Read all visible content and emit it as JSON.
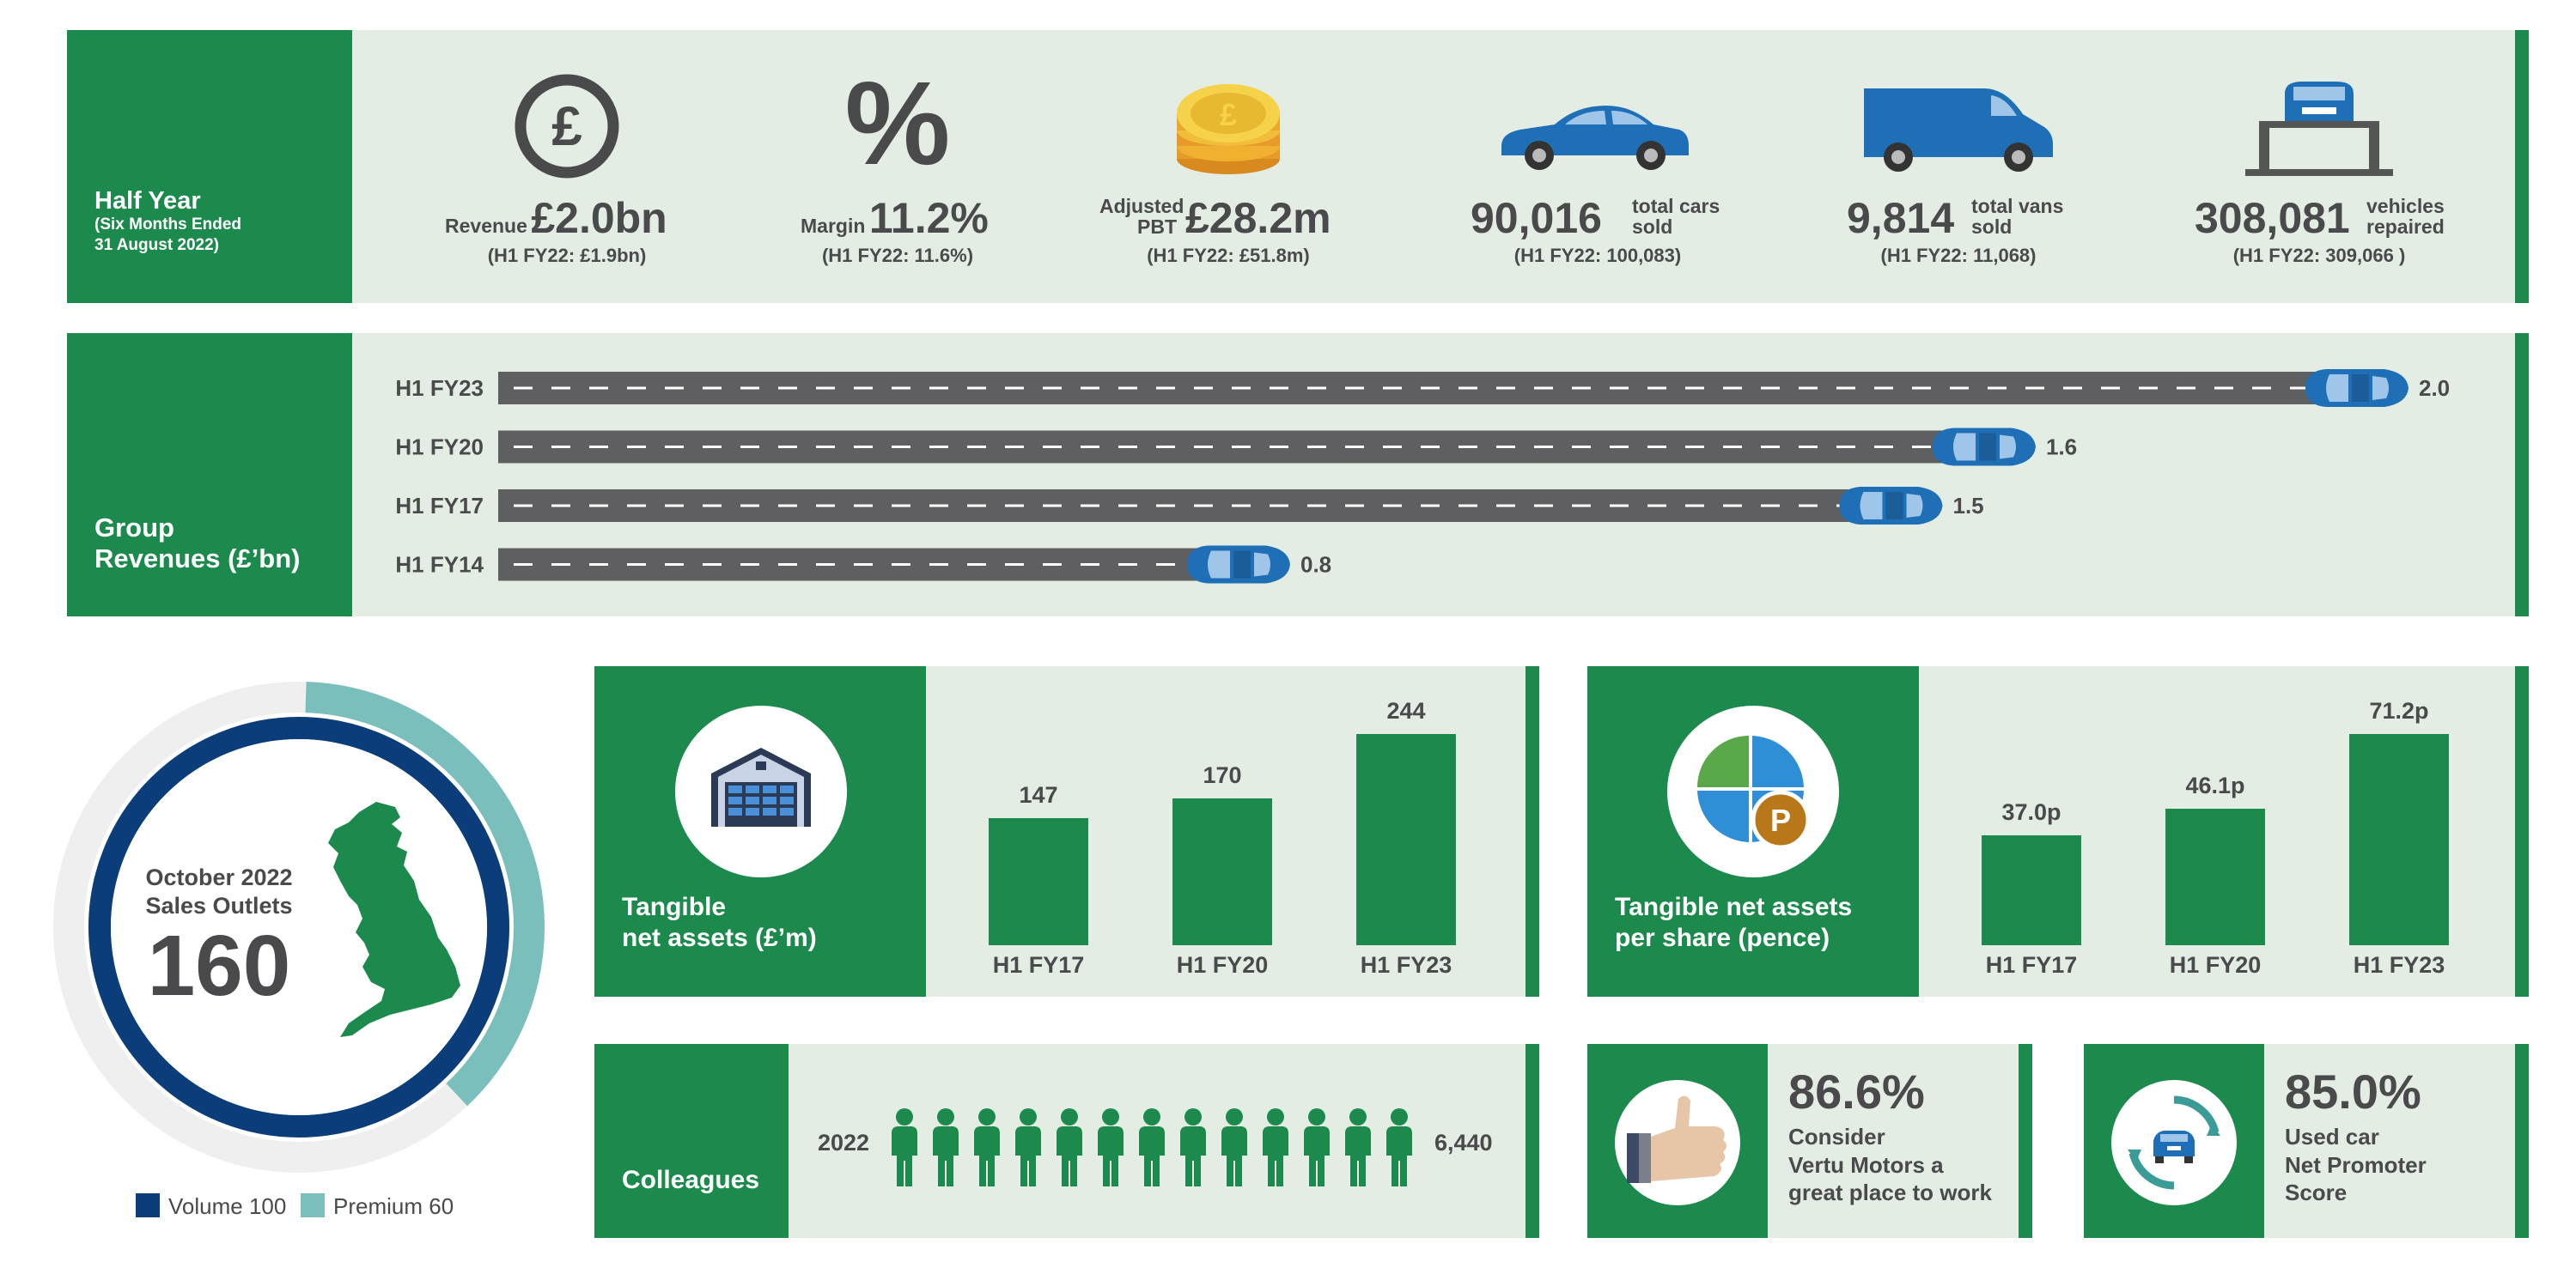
{
  "half_year": {
    "title": "Half Year",
    "subtitle_line1": "(Six Months Ended",
    "subtitle_line2": "31 August 2022)"
  },
  "stats": [
    {
      "icon": "pound-icon",
      "prefix": "Revenue",
      "value": "£2.0bn",
      "suffix": "",
      "note": "(H1 FY22: £1.9bn)"
    },
    {
      "icon": "percent-icon",
      "prefix": "Margin",
      "value": "11.2%",
      "suffix": "",
      "note": "(H1 FY22: 11.6%)"
    },
    {
      "icon": "coins-icon",
      "prefix_line1": "Adjusted",
      "prefix_line2": "PBT",
      "value": "£28.2m",
      "note": "(H1 FY22: £51.8m)"
    },
    {
      "icon": "car-icon",
      "value": "90,016",
      "suffix_line1": "total cars",
      "suffix_line2": "sold",
      "note": "(H1 FY22: 100,083)"
    },
    {
      "icon": "van-icon",
      "value": "9,814",
      "suffix_line1": "total vans",
      "suffix_line2": "sold",
      "note": "(H1 FY22: 11,068)"
    },
    {
      "icon": "car-lift-icon",
      "value": "308,081",
      "suffix_line1": "vehicles",
      "suffix_line2": "repaired",
      "note": "(H1 FY22: 309,066 )"
    }
  ],
  "group_revenues": {
    "label_line1": "Group",
    "label_line2": "Revenues (£’bn)",
    "rows": [
      {
        "label": "H1 FY23",
        "value": 2.0,
        "value_text": "2.0"
      },
      {
        "label": "H1 FY20",
        "value": 1.6,
        "value_text": "1.6"
      },
      {
        "label": "H1 FY17",
        "value": 1.5,
        "value_text": "1.5"
      },
      {
        "label": "H1 FY14",
        "value": 0.8,
        "value_text": "0.8"
      }
    ]
  },
  "outlets": {
    "line1": "October 2022",
    "line2": "Sales Outlets",
    "total": "160",
    "volume": 100,
    "premium": 60,
    "legend_volume": "Volume 100",
    "legend_premium": "Premium 60",
    "colors": {
      "volume": "#0b3d7a",
      "premium": "#7bbfbd",
      "track": "#efefef"
    }
  },
  "tangible_assets": {
    "label_line1": "Tangible",
    "label_line2": "net assets (£’m)",
    "icon": "warehouse-icon"
  },
  "tangible_per_share": {
    "label_line1": "Tangible net assets",
    "label_line2": "per share (pence)",
    "icon": "pie-pound-icon"
  },
  "chart_data": [
    {
      "type": "bar",
      "categories": [
        "H1 FY17",
        "H1 FY20",
        "H1 FY23"
      ],
      "values": [
        147,
        170,
        244
      ],
      "value_labels": [
        "147",
        "170",
        "244"
      ],
      "title": "Tangible net assets (£’m)"
    },
    {
      "type": "bar",
      "categories": [
        "H1 FY17",
        "H1 FY20",
        "H1 FY23"
      ],
      "values": [
        37.0,
        46.1,
        71.2
      ],
      "value_labels": [
        "37.0p",
        "46.1p",
        "71.2p"
      ],
      "title": "Tangible net assets per share (pence)"
    }
  ],
  "colleagues": {
    "label": "Colleagues",
    "year": "2022",
    "count": "6,440",
    "icon": "person-icon"
  },
  "great_place": {
    "value": "86.6%",
    "line1": "Consider",
    "line2": "Vertu Motors a",
    "line3": "great place to work",
    "icon": "thumbs-up-icon"
  },
  "nps": {
    "value": "85.0%",
    "line1": "Used car",
    "line2": "Net Promoter",
    "line3": "Score",
    "icon": "car-cycle-icon"
  },
  "colors": {
    "green": "#1b8a4c",
    "pale": "#e3ede4",
    "car_blue": "#1e6fb5",
    "road": "#5f5f61"
  }
}
